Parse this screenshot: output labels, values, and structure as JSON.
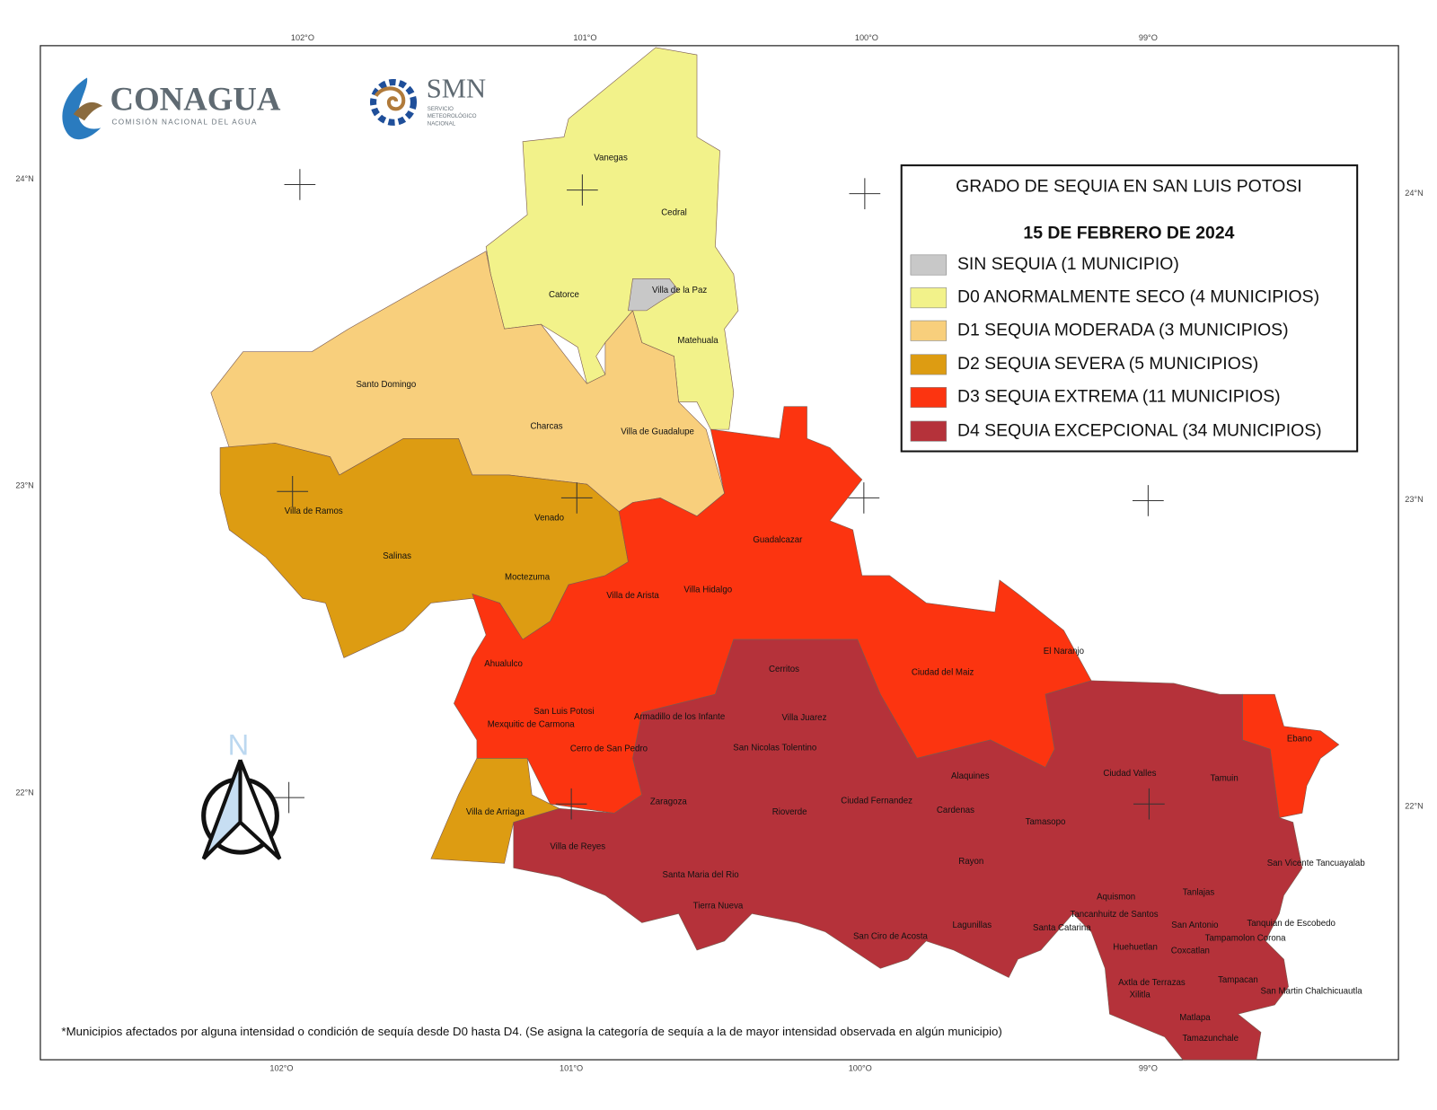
{
  "logos": {
    "conagua": {
      "name": "CONAGUA",
      "subtitle": "COMISIÓN NACIONAL DEL AGUA"
    },
    "smn": {
      "name": "SMN",
      "subtitle": [
        "SERVICIO",
        "METEOROLÓGICO",
        "NACIONAL"
      ]
    }
  },
  "graticule": {
    "top": [
      "102°O",
      "101°O",
      "100°O",
      "99°O"
    ],
    "bottom": [
      "102°O",
      "101°O",
      "100°O",
      "99°O"
    ],
    "left": [
      "24°N",
      "23°N",
      "22°N"
    ],
    "right": [
      "24°N",
      "23°N",
      "22°N"
    ]
  },
  "legend": {
    "title": "GRADO DE SEQUIA EN SAN LUIS POTOSI",
    "date": "15 DE FEBRERO DE 2024",
    "items": [
      {
        "label": "SIN SEQUIA  (1 MUNICIPIO)",
        "color": "#c8c8c8"
      },
      {
        "label": "D0  ANORMALMENTE SECO  (4 MUNICIPIOS)",
        "color": "#f2f28a"
      },
      {
        "label": "D1  SEQUIA MODERADA  (3 MUNICIPIOS)",
        "color": "#f8cf7c"
      },
      {
        "label": "D2  SEQUIA SEVERA  (5 MUNICIPIOS)",
        "color": "#dd9c12"
      },
      {
        "label": "D3  SEQUIA EXTREMA  (11 MUNICIPIOS)",
        "color": "#fc3410"
      },
      {
        "label": "D4  SEQUIA EXCEPCIONAL (34 MUNICIPIOS)",
        "color": "#b5323a"
      }
    ]
  },
  "north_arrow": "N",
  "municipalities": [
    "Vanegas",
    "Cedral",
    "Catorce",
    "Villa de la Paz",
    "Matehuala",
    "Santo Domingo",
    "Charcas",
    "Villa de Guadalupe",
    "Villa de Ramos",
    "Venado",
    "Salinas",
    "Guadalcazar",
    "Moctezuma",
    "Villa de Arista",
    "Villa Hidalgo",
    "El Naranjo",
    "Ahualulco",
    "Cerritos",
    "Ciudad del Maiz",
    "San Luis Potosi",
    "Armadillo de los Infante",
    "Villa Juarez",
    "Mexquitic de Carmona",
    "Ebano",
    "Cerro de San Pedro",
    "San Nicolas Tolentino",
    "Ciudad Valles",
    "Alaquines",
    "Tamuin",
    "Zaragoza",
    "Ciudad Fernandez",
    "Rioverde",
    "Villa de Arriaga",
    "Cardenas",
    "Tamasopo",
    "Villa de Reyes",
    "Rayon",
    "San Vicente Tancuayalab",
    "Santa Maria del Rio",
    "Tanlajas",
    "Aquismon",
    "Tierra Nueva",
    "Tancanhuitz de Santos",
    "Tanquian de Escobedo",
    "San Antonio",
    "Lagunillas",
    "Santa Catarina",
    "San Ciro de Acosta",
    "Tampamolon Corona",
    "Huehuetlan",
    "Coxcatlan",
    "Tampacan",
    "Axtla de Terrazas",
    "San Martin Chalchicuautla",
    "Xilitla",
    "Matlapa",
    "Tamazunchale"
  ],
  "footnote": "*Municipios afectados por alguna intensidad o condición de sequía desde D0 hasta D4. (Se asigna la categoría de sequía a la de mayor intensidad observada en algún municipio)"
}
